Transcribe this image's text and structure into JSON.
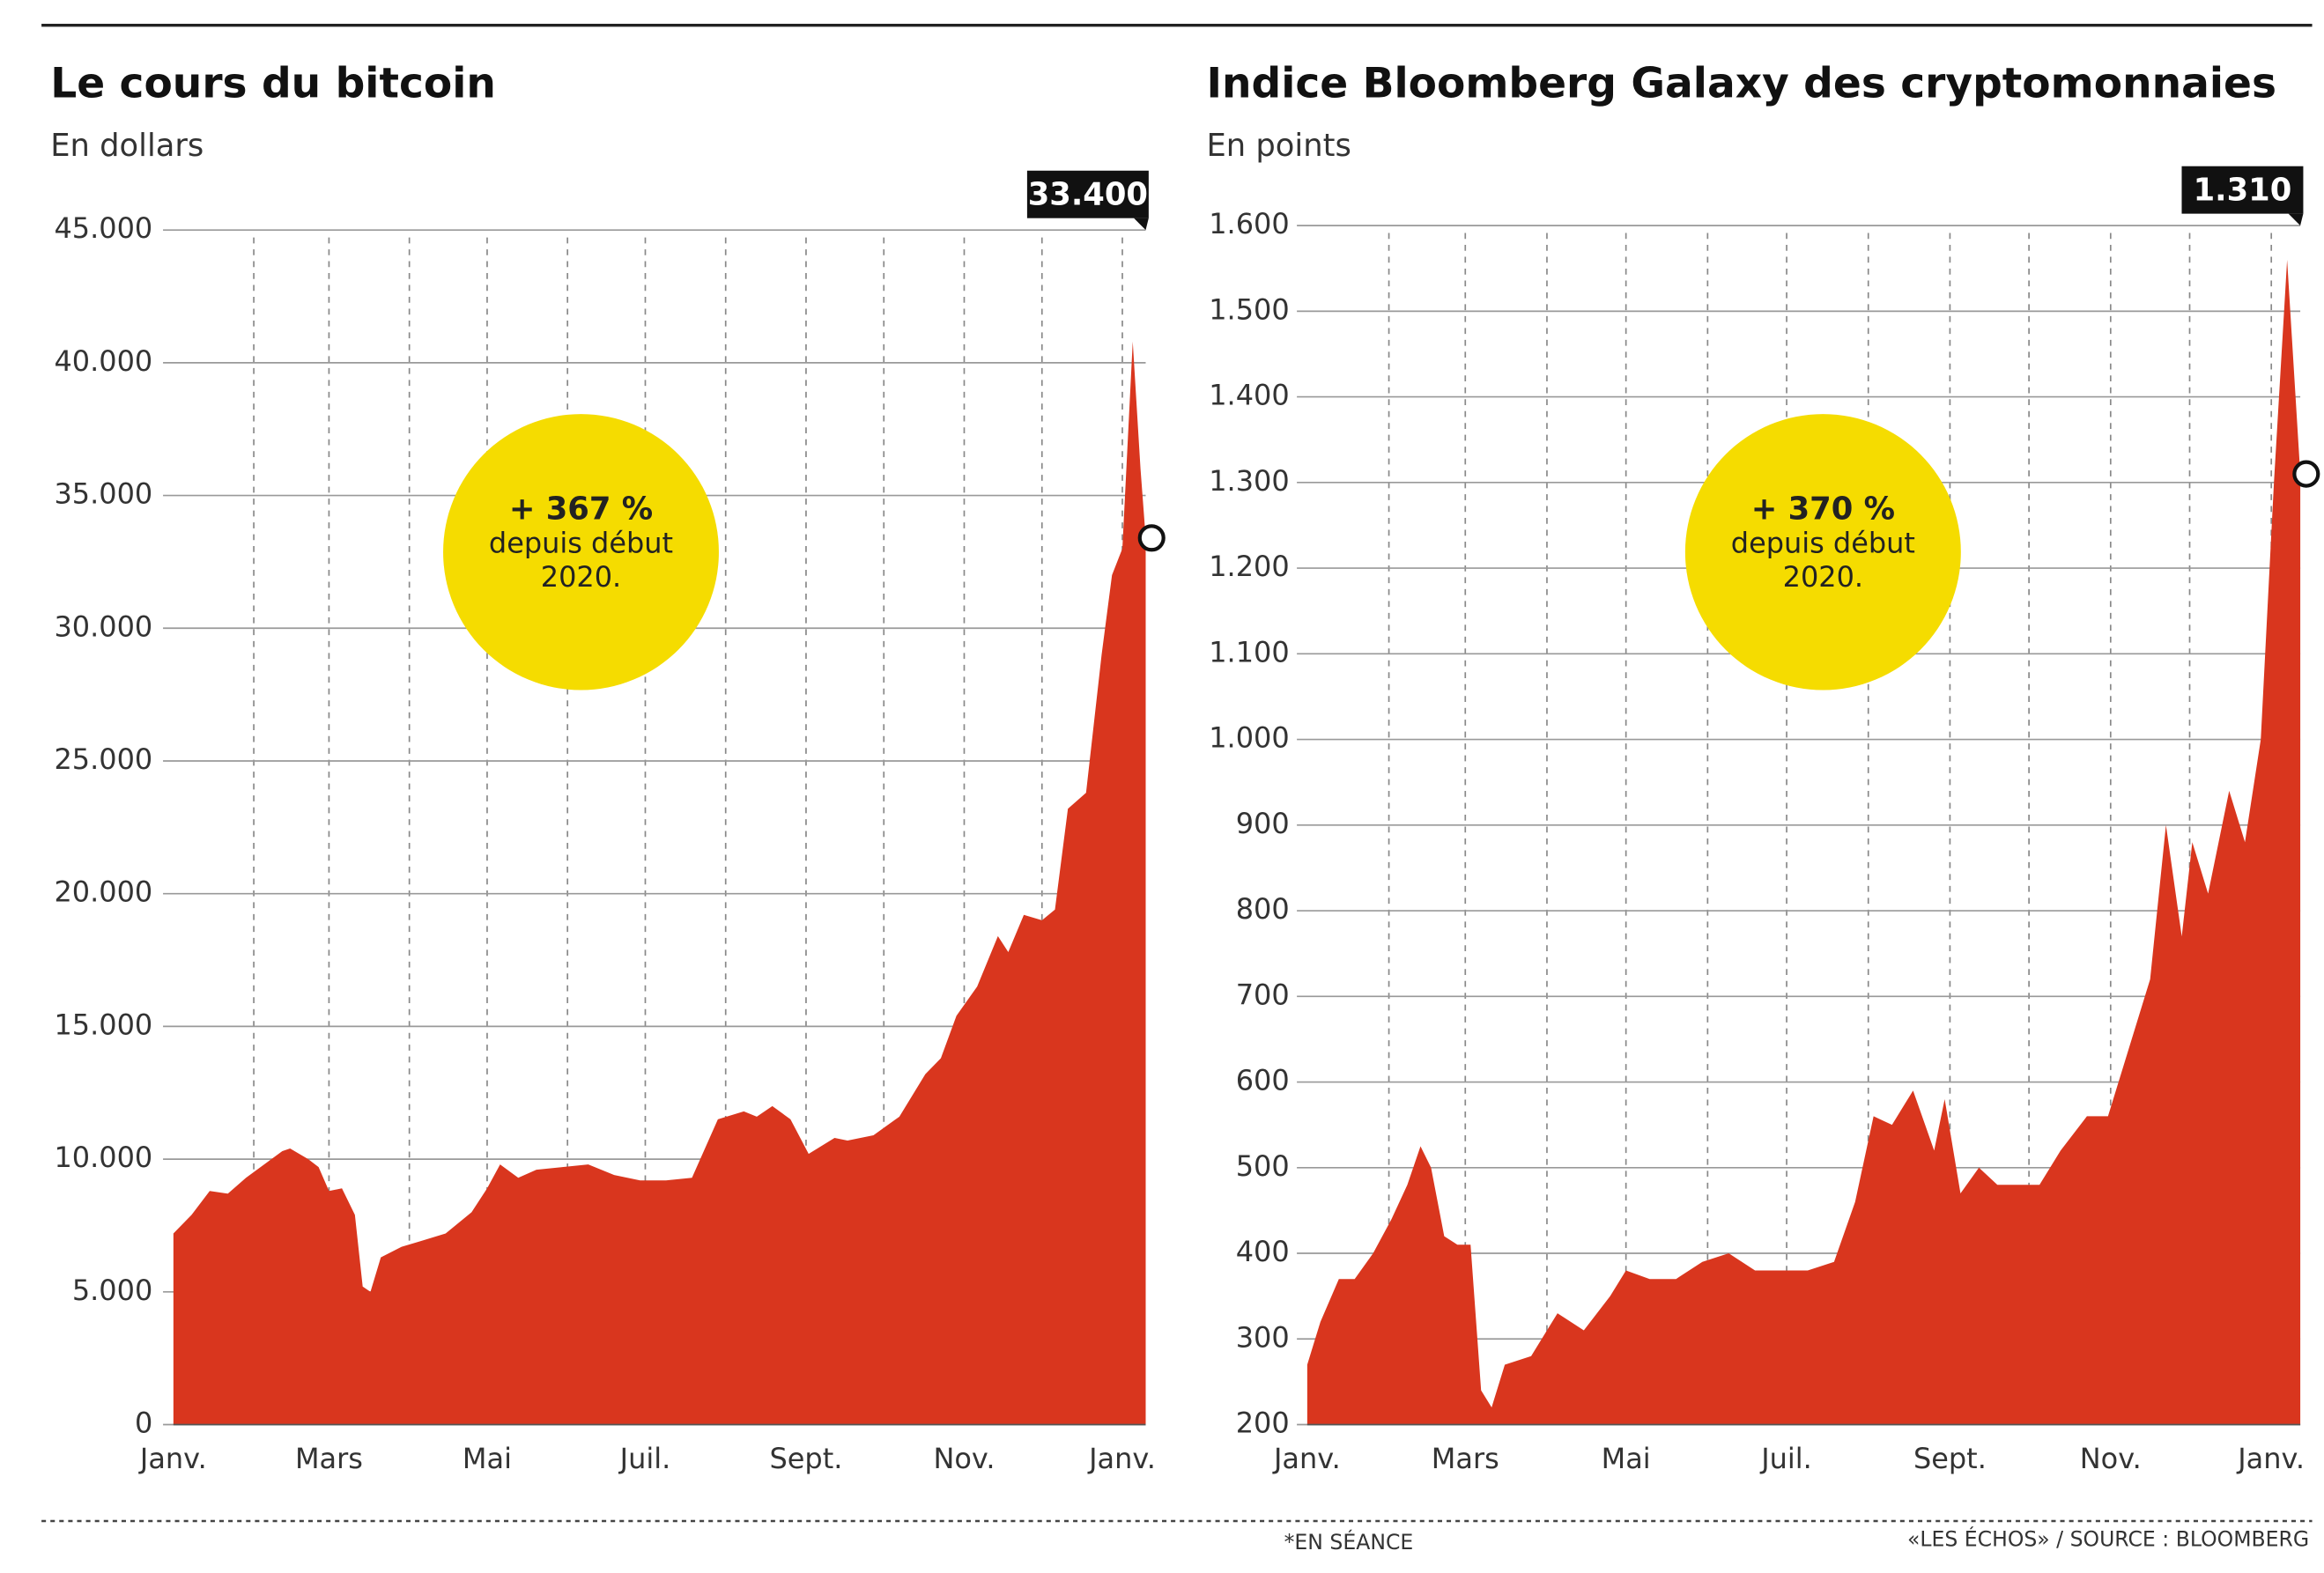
{
  "chart_data": [
    {
      "type": "area",
      "title": "Le cours du bitcoin",
      "subtitle": "En dollars",
      "color": "#d9361e",
      "xlim": [
        0,
        375
      ],
      "xticks": [
        {
          "value": 0,
          "label": "Janv."
        },
        {
          "value": 60,
          "label": "Mars"
        },
        {
          "value": 121,
          "label": "Mai"
        },
        {
          "value": 182,
          "label": "Juil."
        },
        {
          "value": 244,
          "label": "Sept."
        },
        {
          "value": 305,
          "label": "Nov."
        },
        {
          "value": 366,
          "label": "Janv."
        }
      ],
      "x_minor_ticks": [
        31,
        91,
        152,
        213,
        274,
        335
      ],
      "ylim": [
        0,
        45000
      ],
      "yticks": [
        0,
        {
          "value": 5000,
          "label": "5.000"
        },
        {
          "value": 10000,
          "label": "10.000"
        },
        {
          "value": 15000,
          "label": "15.000"
        },
        {
          "value": 20000,
          "label": "20.000"
        },
        {
          "value": 25000,
          "label": "25.000"
        },
        {
          "value": 30000,
          "label": "30.000"
        },
        {
          "value": 35000,
          "label": "35.000"
        },
        {
          "value": 40000,
          "label": "40.000"
        },
        {
          "value": 45000,
          "label": "45.000"
        }
      ],
      "grid": true,
      "x": [
        0,
        7,
        14,
        21,
        28,
        35,
        42,
        45,
        52,
        56,
        60,
        65,
        70,
        73,
        76,
        80,
        88,
        95,
        105,
        115,
        121,
        126,
        133,
        140,
        150,
        160,
        170,
        180,
        190,
        200,
        210,
        220,
        225,
        231,
        238,
        245,
        255,
        260,
        270,
        280,
        290,
        296,
        302,
        310,
        318,
        322,
        328,
        335,
        340,
        345,
        352,
        358,
        362,
        366,
        370,
        373,
        375
      ],
      "values": [
        7200,
        7900,
        8800,
        8700,
        9300,
        9800,
        10300,
        10400,
        10000,
        9700,
        8800,
        8900,
        7900,
        5200,
        5000,
        6300,
        6700,
        6900,
        7200,
        8000,
        8900,
        9800,
        9300,
        9600,
        9700,
        9800,
        9400,
        9200,
        9200,
        9300,
        11500,
        11800,
        11600,
        12000,
        11500,
        10200,
        10800,
        10700,
        10900,
        11600,
        13200,
        13800,
        15400,
        16500,
        18400,
        17800,
        19200,
        19000,
        19400,
        23200,
        23800,
        29000,
        32000,
        33000,
        40800,
        36000,
        33400
      ],
      "marker": {
        "x": 375,
        "value": 33400,
        "label": "33.400"
      },
      "bubble": [
        "+ 367 %",
        "depuis début",
        "2020."
      ]
    },
    {
      "type": "area",
      "title": "Indice Bloomberg Galaxy des cryptomonnaies",
      "subtitle": "En points",
      "color": "#d9361e",
      "xlim": [
        0,
        377
      ],
      "xticks": [
        {
          "value": 0,
          "label": "Janv."
        },
        {
          "value": 60,
          "label": "Mars"
        },
        {
          "value": 121,
          "label": "Mai"
        },
        {
          "value": 182,
          "label": "Juil."
        },
        {
          "value": 244,
          "label": "Sept."
        },
        {
          "value": 305,
          "label": "Nov."
        },
        {
          "value": 366,
          "label": "Janv."
        }
      ],
      "x_minor_ticks": [
        31,
        91,
        152,
        213,
        274,
        335
      ],
      "ylim": [
        200,
        1600
      ],
      "yticks": [
        200,
        300,
        400,
        500,
        600,
        700,
        800,
        900,
        {
          "value": 1000,
          "label": "1.000"
        },
        {
          "value": 1100,
          "label": "1.100"
        },
        {
          "value": 1200,
          "label": "1.200"
        },
        {
          "value": 1300,
          "label": "1.300"
        },
        {
          "value": 1400,
          "label": "1.400"
        },
        {
          "value": 1500,
          "label": "1.500"
        },
        {
          "value": 1600,
          "label": "1.600"
        }
      ],
      "grid": true,
      "x": [
        0,
        5,
        12,
        18,
        25,
        32,
        38,
        43,
        47,
        52,
        57,
        62,
        66,
        70,
        75,
        85,
        95,
        105,
        115,
        121,
        130,
        140,
        150,
        160,
        170,
        180,
        190,
        200,
        208,
        215,
        222,
        230,
        238,
        242,
        248,
        255,
        262,
        270,
        278,
        286,
        296,
        304,
        312,
        320,
        326,
        332,
        336,
        342,
        350,
        356,
        362,
        367,
        372,
        377
      ],
      "values": [
        270,
        320,
        370,
        370,
        400,
        440,
        480,
        525,
        500,
        420,
        410,
        410,
        240,
        220,
        270,
        280,
        330,
        310,
        350,
        380,
        370,
        370,
        390,
        400,
        380,
        380,
        380,
        390,
        460,
        560,
        550,
        590,
        520,
        580,
        470,
        500,
        480,
        480,
        480,
        520,
        560,
        560,
        640,
        720,
        900,
        770,
        880,
        820,
        940,
        880,
        1000,
        1300,
        1560,
        1310
      ],
      "marker": {
        "x": 377,
        "value": 1310,
        "label": "1.310"
      },
      "bubble": [
        "+ 370 %",
        "depuis début",
        "2020."
      ]
    }
  ],
  "footer": {
    "note": "*EN SÉANCE",
    "source": "«LES ÉCHOS» / SOURCE : BLOOMBERG"
  }
}
